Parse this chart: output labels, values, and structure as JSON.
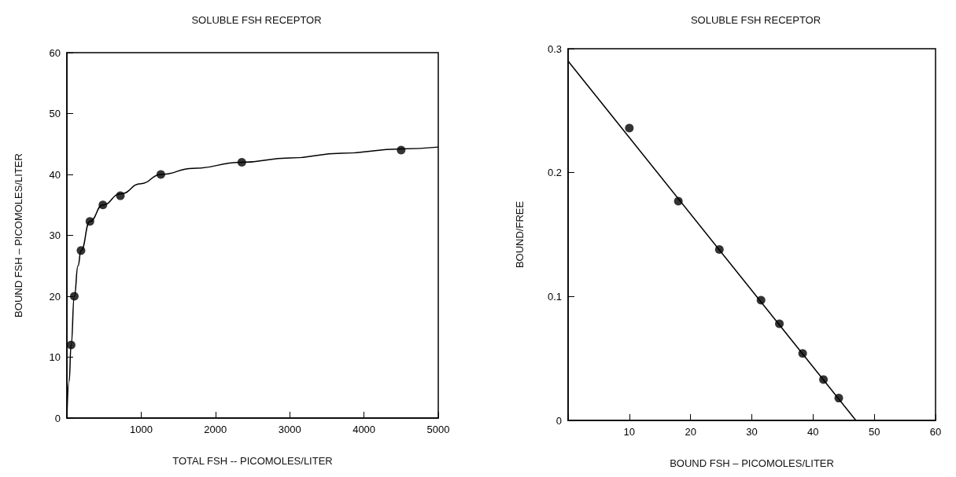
{
  "chart_data": [
    {
      "type": "scatter",
      "title": "SOLUBLE FSH RECEPTOR",
      "xlabel": "TOTAL FSH -- PICOMOLES/LITER",
      "ylabel": "BOUND FSH – PICOMOLES/LITER",
      "series": [
        {
          "color": "#000000",
          "marker": "circle",
          "x": [
            57,
            100,
            190,
            310,
            485,
            720,
            1265,
            2355,
            4500
          ],
          "values": [
            12,
            20,
            27.5,
            32.3,
            35,
            36.5,
            40,
            42,
            44
          ]
        },
        {
          "type": "line",
          "color": "#000000",
          "marker": "none",
          "line_style": "solid",
          "x": [
            0,
            30,
            57,
            100,
            150,
            190,
            310,
            485,
            720,
            1000,
            1265,
            1700,
            2355,
            3000,
            3700,
            4500,
            5000
          ],
          "values": [
            0,
            6,
            12,
            20,
            25,
            27.5,
            32.3,
            35,
            36.8,
            38.5,
            40,
            41,
            42,
            42.7,
            43.5,
            44.2,
            44.5
          ]
        }
      ],
      "xlim": [
        0,
        5000
      ],
      "xticks": [
        {
          "value": 0,
          "label": null
        },
        1000,
        2000,
        3000,
        4000,
        5000
      ],
      "ylim": [
        0,
        60
      ],
      "yticks": [
        0,
        10,
        20,
        30,
        40,
        50,
        60
      ],
      "grid": false
    },
    {
      "type": "scatter",
      "title": "SOLUBLE FSH RECEPTOR",
      "xlabel": "BOUND FSH – PICOMOLES/LITER",
      "ylabel": "BOUND/FREE",
      "series": [
        {
          "color": "#000000",
          "marker": "circle",
          "x": [
            10,
            18,
            24.7,
            31.5,
            34.5,
            38.3,
            41.7,
            44.2
          ],
          "values": [
            0.236,
            0.177,
            0.138,
            0.097,
            0.078,
            0.054,
            0.033,
            0.018
          ]
        },
        {
          "type": "line",
          "color": "#000000",
          "marker": "none",
          "line_style": "solid",
          "x": [
            0,
            47
          ],
          "values": [
            0.29,
            0
          ]
        }
      ],
      "xlim": [
        0,
        60
      ],
      "xticks": [
        {
          "value": 0,
          "label": null
        },
        10,
        20,
        30,
        40,
        50,
        60
      ],
      "ylim": [
        0,
        0.3
      ],
      "yticks": [
        0,
        0.1,
        0.2,
        0.3
      ],
      "grid": false
    }
  ]
}
